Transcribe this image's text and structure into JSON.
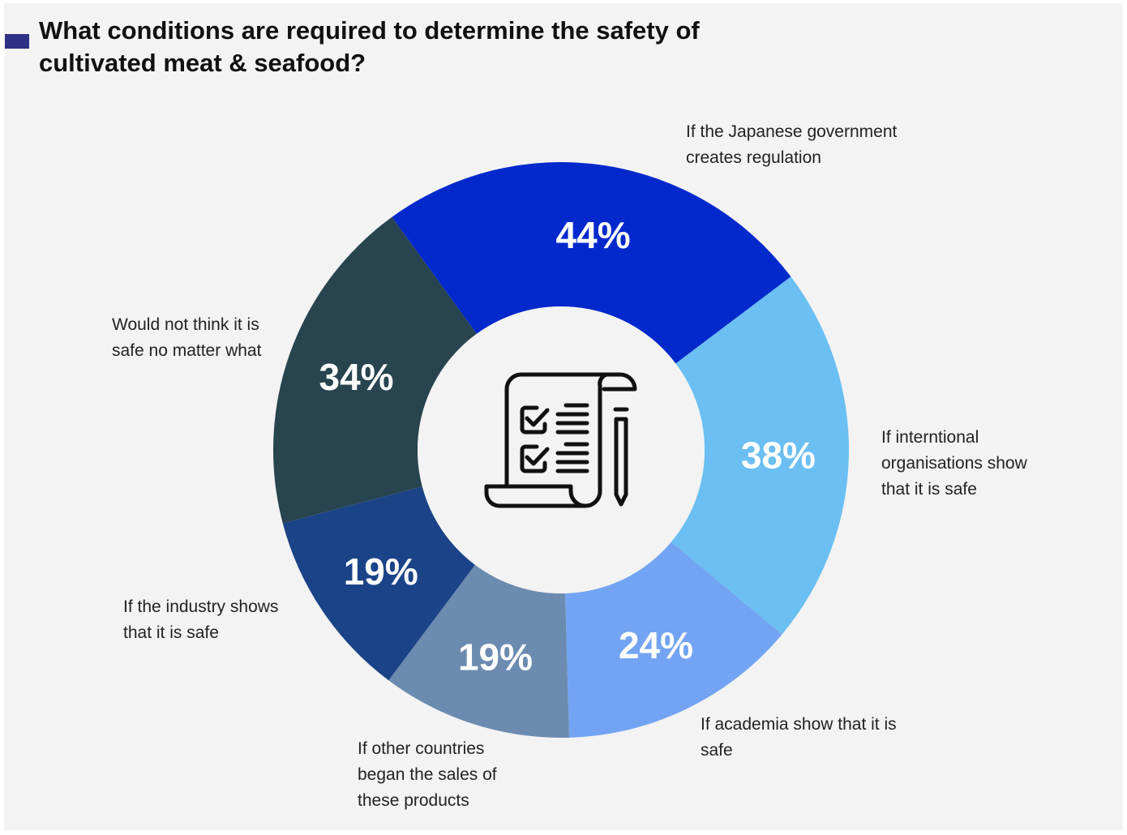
{
  "title": "What conditions are required to determine the safety of cultivated meat & seafood?",
  "center_icon": "checklist-scroll-pencil-icon",
  "chart_data": {
    "type": "pie",
    "variant": "donut",
    "title": "What conditions are required to determine the safety of cultivated meat & seafood?",
    "start_angle_deg": -36,
    "categories": [
      "If the Japanese government creates regulation",
      "If interntional organisations show that it is safe",
      "If academia show that it is safe",
      "If other countries began the sales of these products",
      "If the industry shows that it is safe",
      "Would not think it is safe no matter what"
    ],
    "values": [
      44,
      38,
      24,
      19,
      19,
      34
    ],
    "value_labels": [
      "44%",
      "38%",
      "24%",
      "19%",
      "19%",
      "34%"
    ],
    "colors": [
      "#0329cc",
      "#6bbff2",
      "#72a4f3",
      "#6c8bb0",
      "#1b4387",
      "#27444f"
    ]
  }
}
